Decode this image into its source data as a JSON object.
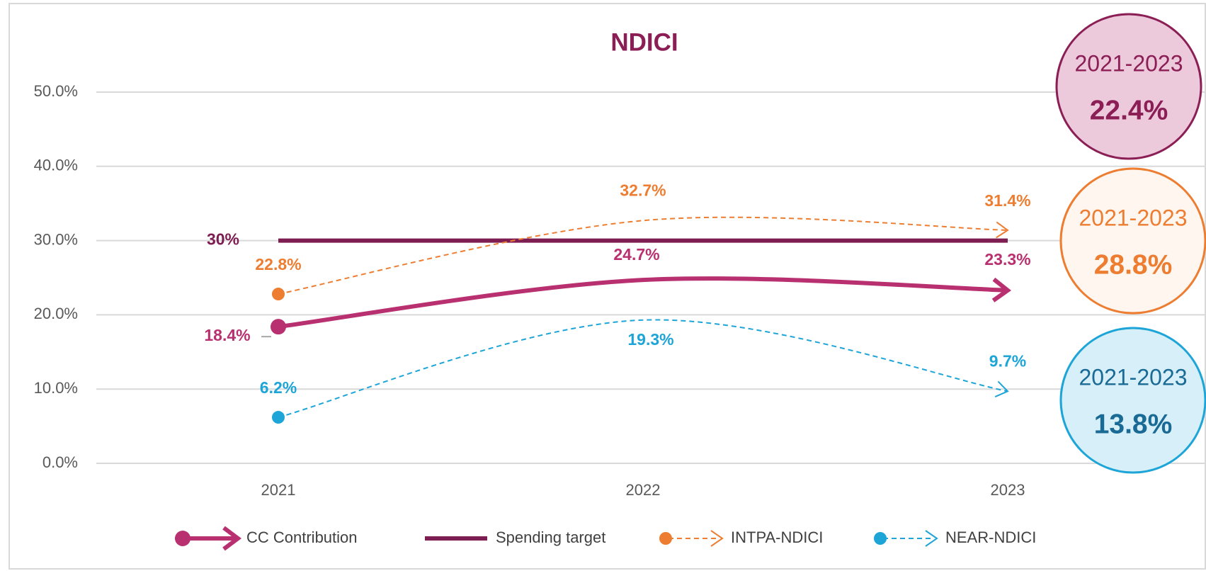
{
  "chart_data": {
    "type": "line",
    "title": "NDICI",
    "categories": [
      "2021",
      "2022",
      "2023"
    ],
    "ylim": [
      0,
      50
    ],
    "yticks": [
      {
        "value": 0,
        "label": "0.0%"
      },
      {
        "value": 10,
        "label": "10.0%"
      },
      {
        "value": 20,
        "label": "20.0%"
      },
      {
        "value": 30,
        "label": "30.0%"
      },
      {
        "value": 40,
        "label": "40.0%"
      },
      {
        "value": 50,
        "label": "50.0%"
      }
    ],
    "grid": true,
    "legend": "bottom",
    "series": [
      {
        "name": "CC Contribution",
        "color": "#b8306f",
        "dashed": false,
        "start_marker": true,
        "end_arrow": true,
        "values": [
          18.4,
          24.7,
          23.3
        ],
        "value_labels": [
          "18.4%",
          "24.7%",
          "23.3%"
        ]
      },
      {
        "name": "Spending target",
        "color": "#7d1d52",
        "dashed": false,
        "start_marker": false,
        "end_arrow": false,
        "values": [
          30,
          30,
          30
        ],
        "value_labels": [
          "30%",
          null,
          null
        ]
      },
      {
        "name": "INTPA-NDICI",
        "color": "#ed7d31",
        "dashed": true,
        "start_marker": true,
        "end_arrow": true,
        "values": [
          22.8,
          32.7,
          31.4
        ],
        "value_labels": [
          "22.8%",
          "32.7%",
          "31.4%"
        ]
      },
      {
        "name": "NEAR-NDICI",
        "color": "#1ea5d8",
        "dashed": true,
        "start_marker": true,
        "end_arrow": true,
        "values": [
          6.2,
          19.3,
          9.7
        ],
        "value_labels": [
          "6.2%",
          "19.3%",
          "9.7%"
        ]
      }
    ],
    "summary": [
      {
        "label": "2021-2023",
        "value": 22.4,
        "value_label": "22.4%",
        "color": "#8b1f55",
        "fill": "#ecc9db",
        "text_color": "#8b1f55"
      },
      {
        "label": "2021-2023",
        "value": 28.8,
        "value_label": "28.8%",
        "color": "#ed7d31",
        "fill": "#fff6f0",
        "text_color": "#ed7d31"
      },
      {
        "label": "2021-2023",
        "value": 13.8,
        "value_label": "13.8%",
        "color": "#1ea5d8",
        "fill": "#d7eff9",
        "text_color": "#1a6a96"
      }
    ]
  }
}
